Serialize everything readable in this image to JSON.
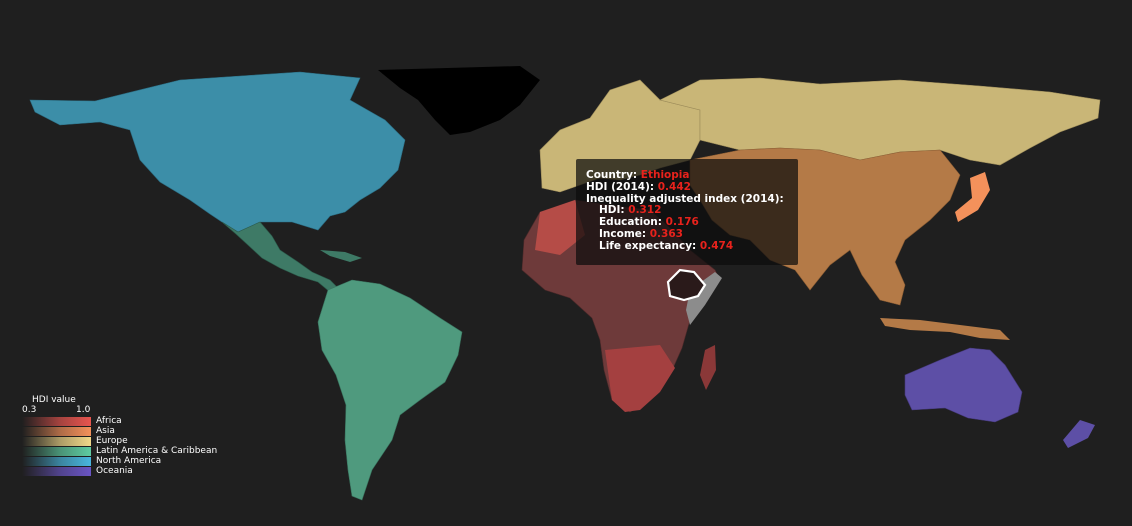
{
  "tooltip": {
    "country_label": "Country:",
    "country": "Ethiopia",
    "hdi_label": "HDI (2014):",
    "hdi": "0.442",
    "ineq_label": "Inequality adjusted index (2014):",
    "sub": [
      {
        "label": "HDI:",
        "value": "0.312"
      },
      {
        "label": "Education:",
        "value": "0.176"
      },
      {
        "label": "Income:",
        "value": "0.363"
      },
      {
        "label": "Life expectancy:",
        "value": "0.474"
      }
    ]
  },
  "legend": {
    "title": "HDI value",
    "min": "0.3",
    "max": "1.0",
    "regions": [
      {
        "name": "Africa",
        "color": "#e8554f"
      },
      {
        "name": "Asia",
        "color": "#f4915b"
      },
      {
        "name": "Europe",
        "color": "#f2d98a"
      },
      {
        "name": "Latin America & Caribbean",
        "color": "#5fcca2"
      },
      {
        "name": "North America",
        "color": "#49b6de"
      },
      {
        "name": "Oceania",
        "color": "#6a55c4"
      }
    ]
  },
  "colors": {
    "background": "#1f1f1f",
    "no_data": "#000000",
    "highlight_stroke": "#ffffff",
    "value_text": "#e8221c"
  }
}
